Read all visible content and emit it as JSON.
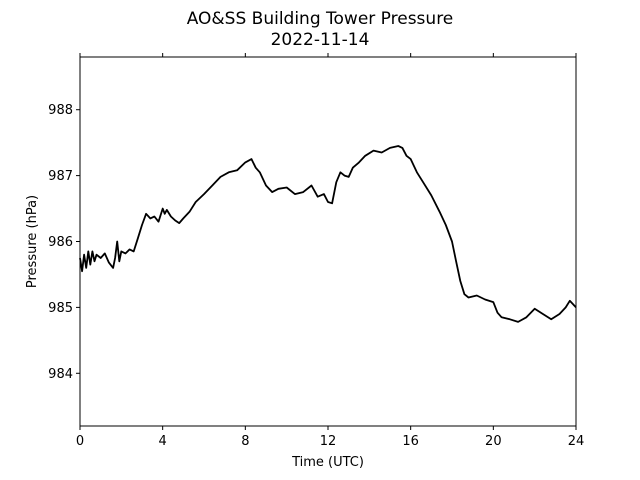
{
  "chart_data": {
    "type": "line",
    "title": "AO&SS Building Tower Pressure",
    "subtitle": "2022-11-14",
    "xlabel": "Time (UTC)",
    "ylabel": "Pressure (hPa)",
    "xlim": [
      0,
      24
    ],
    "ylim": [
      983.2,
      988.8
    ],
    "xticks": [
      0,
      4,
      8,
      12,
      16,
      20,
      24
    ],
    "yticks": [
      984,
      985,
      986,
      987,
      988
    ],
    "grid": false,
    "legend": "none",
    "line_color": "#000000",
    "series": [
      {
        "x": [
          0,
          0.1,
          0.2,
          0.3,
          0.4,
          0.5,
          0.6,
          0.7,
          0.8,
          1.0,
          1.2,
          1.4,
          1.6,
          1.7,
          1.8,
          1.9,
          2.0,
          2.2,
          2.4,
          2.6,
          2.8,
          3.0,
          3.2,
          3.4,
          3.6,
          3.8,
          4.0,
          4.1,
          4.2,
          4.4,
          4.6,
          4.8,
          5.0,
          5.3,
          5.6,
          6.0,
          6.4,
          6.8,
          7.2,
          7.6,
          8.0,
          8.3,
          8.5,
          8.7,
          9.0,
          9.3,
          9.6,
          10.0,
          10.4,
          10.8,
          11.2,
          11.5,
          11.8,
          12.0,
          12.2,
          12.4,
          12.6,
          12.8,
          13.0,
          13.2,
          13.5,
          13.8,
          14.2,
          14.6,
          15.0,
          15.4,
          15.6,
          15.8,
          16.0,
          16.3,
          16.6,
          17.0,
          17.4,
          17.7,
          18.0,
          18.2,
          18.4,
          18.6,
          18.8,
          19.2,
          19.6,
          20.0,
          20.2,
          20.4,
          20.8,
          21.2,
          21.6,
          22.0,
          22.4,
          22.8,
          23.2,
          23.5,
          23.7,
          24.0
        ],
        "y": [
          985.75,
          985.55,
          985.8,
          985.6,
          985.85,
          985.65,
          985.85,
          985.7,
          985.8,
          985.75,
          985.82,
          985.68,
          985.6,
          985.75,
          986.0,
          985.7,
          985.85,
          985.82,
          985.88,
          985.85,
          986.05,
          986.25,
          986.42,
          986.35,
          986.38,
          986.3,
          986.5,
          986.42,
          986.48,
          986.38,
          986.32,
          986.28,
          986.35,
          986.45,
          986.6,
          986.72,
          986.85,
          986.98,
          987.05,
          987.08,
          987.2,
          987.25,
          987.12,
          987.05,
          986.85,
          986.75,
          986.8,
          986.82,
          986.72,
          986.75,
          986.85,
          986.68,
          986.72,
          986.6,
          986.58,
          986.9,
          987.05,
          987.0,
          986.98,
          987.12,
          987.2,
          987.3,
          987.38,
          987.35,
          987.42,
          987.45,
          987.42,
          987.3,
          987.25,
          987.05,
          986.9,
          986.7,
          986.45,
          986.25,
          986.0,
          985.7,
          985.4,
          985.2,
          985.15,
          985.18,
          985.12,
          985.08,
          984.92,
          984.85,
          984.82,
          984.78,
          984.85,
          984.98,
          984.9,
          984.82,
          984.9,
          985.0,
          985.1,
          985.0
        ]
      }
    ]
  }
}
